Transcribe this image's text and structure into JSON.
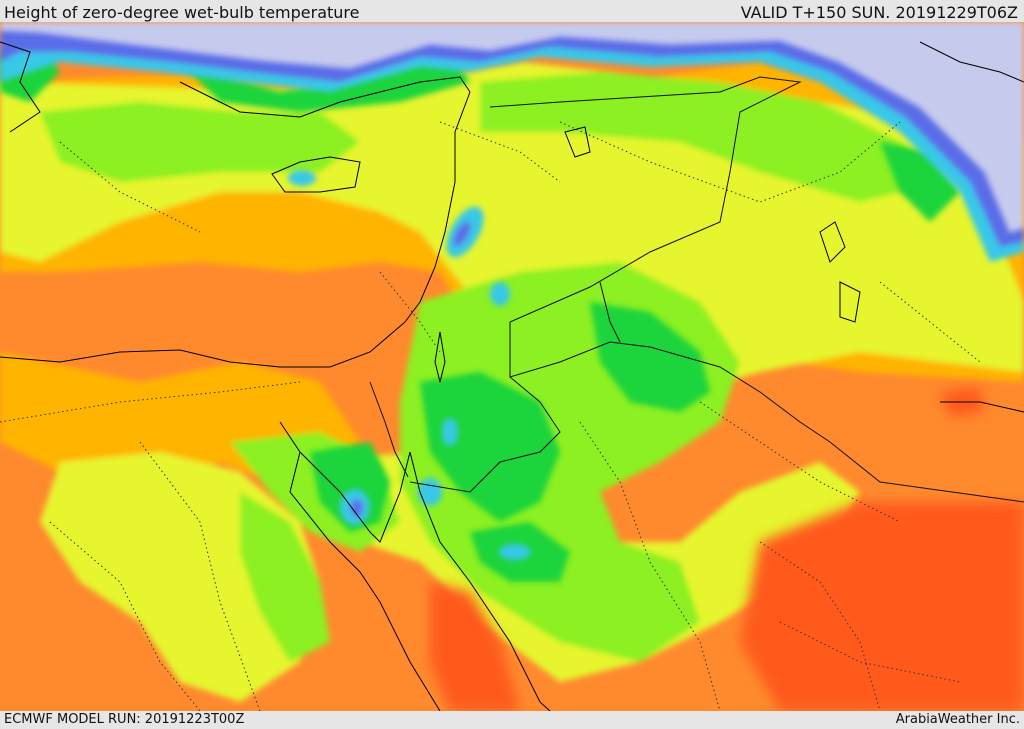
{
  "header": {
    "title": "Height of zero-degree wet-bulb temperature",
    "valid": "VALID T+150 SUN. 20191229T06Z"
  },
  "footer": {
    "model_run": "ECMWF MODEL RUN: 20191223T00Z",
    "credit": "ArabiaWeather Inc."
  },
  "palette": {
    "lowest": "#c6cbee",
    "very_low": "#5a6de8",
    "low": "#38c8e8",
    "mid_low": "#1ed43a",
    "mid": "#8cf020",
    "mid_high": "#e6f52e",
    "high": "#ffb400",
    "higher": "#ff8a2e",
    "highest": "#ff5a1e",
    "border_line": "#111111",
    "coastline": "#000000"
  }
}
